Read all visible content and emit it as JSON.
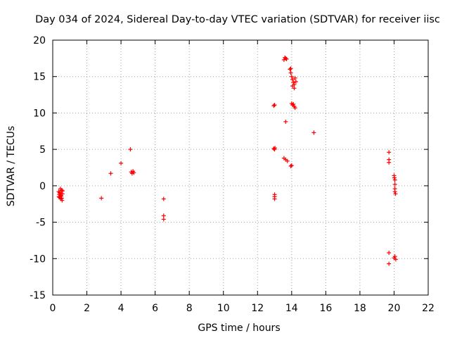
{
  "chart_data": {
    "type": "scatter",
    "title": "Day 034 of 2024, Sidereal Day-to-day VTEC variation (SDTVAR) for receiver iisc",
    "xlabel": "GPS time / hours",
    "ylabel": "SDTVAR / TECUs",
    "xlim": [
      0,
      22
    ],
    "ylim": [
      -15,
      20
    ],
    "xticks": [
      0,
      2,
      4,
      6,
      8,
      10,
      12,
      14,
      16,
      18,
      20,
      22
    ],
    "yticks": [
      -15,
      -10,
      -5,
      0,
      5,
      10,
      15,
      20
    ],
    "grid": true,
    "marker": "plus",
    "color": "#ff0000",
    "series": [
      {
        "name": "SDTVAR",
        "points": [
          [
            0.35,
            -0.8
          ],
          [
            0.38,
            -1.2
          ],
          [
            0.4,
            -1.6
          ],
          [
            0.42,
            -1.0
          ],
          [
            0.45,
            -0.4
          ],
          [
            0.47,
            -1.8
          ],
          [
            0.5,
            -1.4
          ],
          [
            0.52,
            -0.6
          ],
          [
            0.55,
            -2.0
          ],
          [
            0.57,
            -1.1
          ],
          [
            0.36,
            -1.5
          ],
          [
            0.41,
            -0.9
          ],
          [
            0.46,
            -1.3
          ],
          [
            0.53,
            -1.7
          ],
          [
            0.58,
            -0.7
          ],
          [
            2.85,
            -1.7
          ],
          [
            3.4,
            1.7
          ],
          [
            4.0,
            3.1
          ],
          [
            4.55,
            5.0
          ],
          [
            4.6,
            1.9
          ],
          [
            4.65,
            1.7
          ],
          [
            4.7,
            2.0
          ],
          [
            4.75,
            1.8
          ],
          [
            6.5,
            -1.8
          ],
          [
            6.5,
            -4.1
          ],
          [
            6.5,
            -4.6
          ],
          [
            12.95,
            11.0
          ],
          [
            13.0,
            11.1
          ],
          [
            12.95,
            5.1
          ],
          [
            13.0,
            5.0
          ],
          [
            13.02,
            5.2
          ],
          [
            13.0,
            -1.2
          ],
          [
            13.0,
            -1.5
          ],
          [
            13.0,
            -1.8
          ],
          [
            13.55,
            17.3
          ],
          [
            13.6,
            17.6
          ],
          [
            13.65,
            17.5
          ],
          [
            13.7,
            17.4
          ],
          [
            13.65,
            8.8
          ],
          [
            13.55,
            3.8
          ],
          [
            13.65,
            3.6
          ],
          [
            13.75,
            3.4
          ],
          [
            13.9,
            16.0
          ],
          [
            13.95,
            15.5
          ],
          [
            14.0,
            15.0
          ],
          [
            14.05,
            14.6
          ],
          [
            14.1,
            14.2
          ],
          [
            14.15,
            13.9
          ],
          [
            14.2,
            14.8
          ],
          [
            14.25,
            14.3
          ],
          [
            14.05,
            13.7
          ],
          [
            14.15,
            13.4
          ],
          [
            13.95,
            16.1
          ],
          [
            14.0,
            11.3
          ],
          [
            14.05,
            11.1
          ],
          [
            14.1,
            11.2
          ],
          [
            14.15,
            10.9
          ],
          [
            14.2,
            10.7
          ],
          [
            14.0,
            2.8
          ],
          [
            13.95,
            2.7
          ],
          [
            15.3,
            7.3
          ],
          [
            19.7,
            4.6
          ],
          [
            19.7,
            3.6
          ],
          [
            19.7,
            3.2
          ],
          [
            19.7,
            -9.2
          ],
          [
            19.7,
            -10.7
          ],
          [
            20.0,
            1.4
          ],
          [
            20.02,
            1.1
          ],
          [
            20.05,
            0.8
          ],
          [
            20.05,
            0.2
          ],
          [
            20.05,
            -0.4
          ],
          [
            20.05,
            -0.8
          ],
          [
            20.08,
            -1.1
          ],
          [
            20.0,
            -9.9
          ],
          [
            20.05,
            -9.7
          ],
          [
            20.1,
            -10.1
          ]
        ]
      }
    ]
  }
}
